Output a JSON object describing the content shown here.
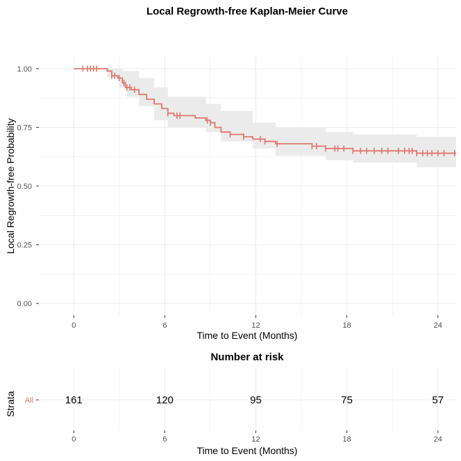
{
  "chart_data": [
    {
      "type": "line",
      "title": "Local Regrowth-free Kaplan-Meier Curve",
      "xlabel": "Time to Event (Months)",
      "ylabel": "Local Regrowth-free Probability",
      "xlim": [
        -2.3,
        25.2
      ],
      "ylim": [
        -0.05,
        1.05
      ],
      "x_ticks": [
        0,
        6,
        12,
        18,
        24
      ],
      "y_ticks": [
        0.0,
        0.25,
        0.5,
        0.75,
        1.0
      ],
      "x_tick_labels": [
        "0",
        "6",
        "12",
        "18",
        "24"
      ],
      "y_tick_labels": [
        "0.00",
        "0.25",
        "0.50",
        "0.75",
        "1.00"
      ],
      "grid": true,
      "colors": {
        "curve": "#e0776d",
        "ci_band": "#ebebeb",
        "grid": "#ebebeb"
      },
      "series": [
        {
          "step_points": [
            [
              0,
              1.0
            ],
            [
              1.5,
              1.0
            ],
            [
              2.2,
              0.99
            ],
            [
              2.5,
              0.97
            ],
            [
              2.9,
              0.96
            ],
            [
              3.2,
              0.94
            ],
            [
              3.4,
              0.92
            ],
            [
              3.8,
              0.91
            ],
            [
              4.3,
              0.89
            ],
            [
              4.8,
              0.87
            ],
            [
              5.3,
              0.85
            ],
            [
              5.8,
              0.83
            ],
            [
              6.2,
              0.81
            ],
            [
              6.6,
              0.8
            ],
            [
              7.2,
              0.8
            ],
            [
              8.0,
              0.79
            ],
            [
              8.7,
              0.78
            ],
            [
              9.0,
              0.77
            ],
            [
              9.3,
              0.75
            ],
            [
              9.7,
              0.73
            ],
            [
              10.3,
              0.72
            ],
            [
              11.2,
              0.71
            ],
            [
              11.8,
              0.7
            ],
            [
              12.6,
              0.69
            ],
            [
              13.3,
              0.68
            ],
            [
              15.0,
              0.68
            ],
            [
              15.7,
              0.67
            ],
            [
              16.6,
              0.66
            ],
            [
              17.8,
              0.66
            ],
            [
              18.4,
              0.65
            ],
            [
              22.4,
              0.65
            ],
            [
              22.6,
              0.64
            ],
            [
              25.2,
              0.64
            ]
          ],
          "ci_lower": [
            [
              0,
              1.0
            ],
            [
              1.5,
              1.0
            ],
            [
              2.2,
              0.96
            ],
            [
              3.0,
              0.92
            ],
            [
              3.5,
              0.88
            ],
            [
              4.3,
              0.84
            ],
            [
              5.3,
              0.78
            ],
            [
              6.2,
              0.75
            ],
            [
              8.7,
              0.73
            ],
            [
              9.7,
              0.69
            ],
            [
              11.8,
              0.66
            ],
            [
              13.3,
              0.63
            ],
            [
              16.6,
              0.61
            ],
            [
              18.4,
              0.6
            ],
            [
              22.6,
              0.58
            ],
            [
              25.2,
              0.57
            ]
          ],
          "ci_upper": [
            [
              0,
              1.0
            ],
            [
              2.5,
              1.0
            ],
            [
              3.2,
              0.99
            ],
            [
              4.3,
              0.96
            ],
            [
              5.3,
              0.92
            ],
            [
              6.2,
              0.88
            ],
            [
              8.7,
              0.85
            ],
            [
              9.7,
              0.82
            ],
            [
              11.8,
              0.77
            ],
            [
              13.3,
              0.75
            ],
            [
              16.6,
              0.73
            ],
            [
              18.4,
              0.72
            ],
            [
              22.6,
              0.71
            ],
            [
              25.2,
              0.7
            ]
          ],
          "censor_times": [
            0.6,
            0.9,
            1.1,
            1.3,
            1.5,
            2.5,
            2.7,
            3.0,
            3.3,
            3.5,
            3.7,
            4.0,
            6.2,
            6.8,
            7.0,
            8.8,
            9.0,
            10.3,
            11.2,
            12.3,
            12.6,
            13.4,
            15.7,
            16.0,
            16.6,
            17.2,
            17.4,
            17.8,
            18.4,
            18.9,
            19.3,
            19.8,
            20.3,
            20.7,
            21.4,
            21.8,
            22.1,
            22.3,
            22.6,
            23.0,
            23.3,
            23.6,
            24.0,
            24.4,
            25.1
          ]
        }
      ]
    },
    {
      "type": "table",
      "title": "Number at risk",
      "xlabel": "Time to Event (Months)",
      "ylabel": "Strata",
      "strata_label": "All",
      "x_ticks": [
        0,
        6,
        12,
        18,
        24
      ],
      "x_tick_labels": [
        "0",
        "6",
        "12",
        "18",
        "24"
      ],
      "values": [
        "161",
        "120",
        "95",
        "75",
        "57"
      ]
    }
  ]
}
